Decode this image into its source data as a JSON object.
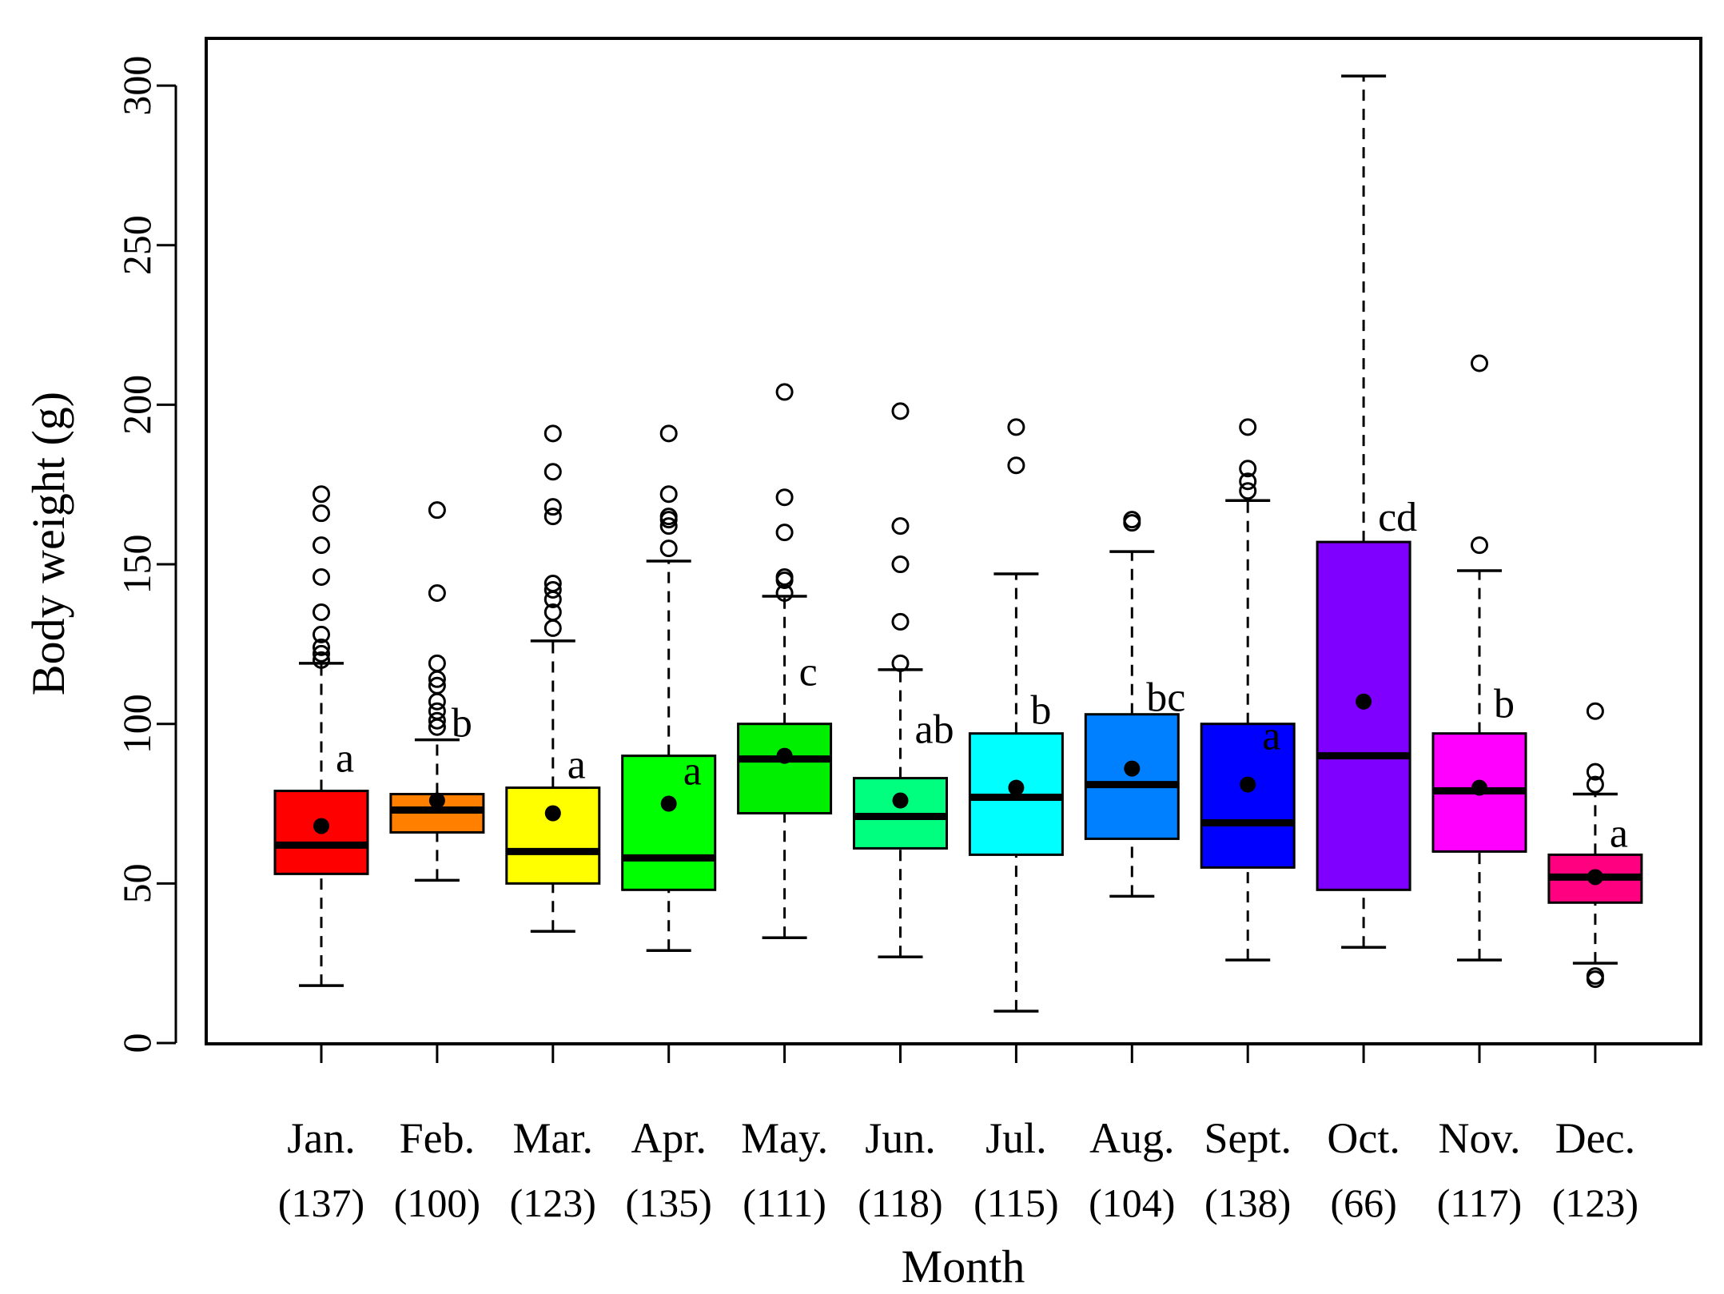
{
  "chart_data": {
    "type": "boxplot",
    "title": "",
    "xlabel": "Month",
    "ylabel": "Body weight (g)",
    "ylim": [
      0,
      320
    ],
    "yticks": [
      0,
      50,
      100,
      150,
      200,
      250,
      300
    ],
    "legend": "none",
    "grid": false,
    "categories": [
      "Jan.",
      "Feb.",
      "Mar.",
      "Apr.",
      "May.",
      "Jun.",
      "Jul.",
      "Aug.",
      "Sept.",
      "Oct.",
      "Nov.",
      "Dec."
    ],
    "counts": [
      "(137)",
      "(100)",
      "(123)",
      "(135)",
      "(111)",
      "(118)",
      "(115)",
      "(104)",
      "(138)",
      "(66)",
      "(117)",
      "(123)"
    ],
    "boxes": [
      {
        "month": "Jan.",
        "color": "#ff0000",
        "whisker_low": 18,
        "q1": 53,
        "median": 62,
        "q3": 79,
        "whisker_high": 119,
        "mean": 68,
        "letter": "a",
        "outliers": [
          120,
          122,
          124,
          128,
          135,
          146,
          156,
          166,
          172
        ]
      },
      {
        "month": "Feb.",
        "color": "#ff7f00",
        "whisker_low": 51,
        "q1": 66,
        "median": 73,
        "q3": 78,
        "whisker_high": 95,
        "mean": 76,
        "letter": "b",
        "outliers": [
          99,
          101,
          104,
          107,
          112,
          114,
          119,
          141,
          167
        ]
      },
      {
        "month": "Mar.",
        "color": "#ffff00",
        "whisker_low": 35,
        "q1": 50,
        "median": 60,
        "q3": 80,
        "whisker_high": 126,
        "mean": 72,
        "letter": "a",
        "outliers": [
          130,
          135,
          139,
          142,
          144,
          165,
          168,
          179,
          191
        ]
      },
      {
        "month": "Apr.",
        "color": "#00ff00",
        "whisker_low": 29,
        "q1": 48,
        "median": 58,
        "q3": 90,
        "whisker_high": 151,
        "mean": 75,
        "letter": "a",
        "outliers": [
          155,
          162,
          164,
          165,
          172,
          191
        ]
      },
      {
        "month": "May.",
        "color": "#00ee00",
        "whisker_low": 33,
        "q1": 72,
        "median": 89,
        "q3": 100,
        "whisker_high": 140,
        "mean": 90,
        "letter": "c",
        "outliers": [
          141,
          145,
          146,
          160,
          171,
          204
        ]
      },
      {
        "month": "Jun.",
        "color": "#00ff7f",
        "whisker_low": 27,
        "q1": 61,
        "median": 71,
        "q3": 83,
        "whisker_high": 117,
        "mean": 76,
        "letter": "ab",
        "outliers": [
          119,
          132,
          150,
          162,
          198
        ]
      },
      {
        "month": "Jul.",
        "color": "#00ffff",
        "whisker_low": 10,
        "q1": 59,
        "median": 77,
        "q3": 97,
        "whisker_high": 147,
        "mean": 80,
        "letter": "b",
        "outliers": [
          181,
          193
        ]
      },
      {
        "month": "Aug.",
        "color": "#0080ff",
        "whisker_low": 46,
        "q1": 64,
        "median": 81,
        "q3": 103,
        "whisker_high": 154,
        "mean": 86,
        "letter": "bc",
        "outliers": [
          163,
          164
        ]
      },
      {
        "month": "Sept.",
        "color": "#0000ff",
        "whisker_low": 26,
        "q1": 55,
        "median": 69,
        "q3": 100,
        "whisker_high": 170,
        "mean": 81,
        "letter": "a",
        "outliers": [
          173,
          176,
          180,
          193
        ]
      },
      {
        "month": "Oct.",
        "color": "#8000ff",
        "whisker_low": 30,
        "q1": 48,
        "median": 90,
        "q3": 157,
        "whisker_high": 303,
        "mean": 107,
        "letter": "cd",
        "outliers": []
      },
      {
        "month": "Nov.",
        "color": "#ff00ff",
        "whisker_low": 26,
        "q1": 60,
        "median": 79,
        "q3": 97,
        "whisker_high": 148,
        "mean": 80,
        "letter": "b",
        "outliers": [
          156,
          213
        ]
      },
      {
        "month": "Dec.",
        "color": "#ff0080",
        "whisker_low": 25,
        "q1": 44,
        "median": 52,
        "q3": 59,
        "whisker_high": 78,
        "mean": 52,
        "letter": "a",
        "outliers": [
          20,
          21,
          81,
          85,
          104
        ]
      }
    ]
  }
}
